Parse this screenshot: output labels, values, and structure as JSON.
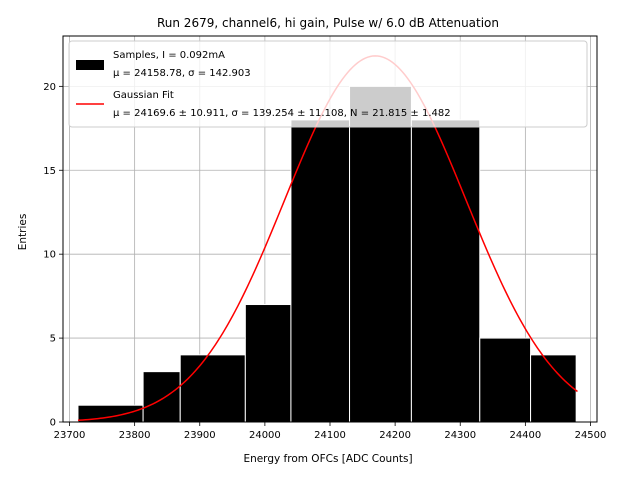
{
  "chart_data": {
    "type": "histogram",
    "title": "Run 2679, channel6, hi gain, Pulse w/ 6.0 dB Attenuation",
    "xlabel": "Energy from OFCs [ADC Counts]",
    "ylabel": "Entries",
    "xlim": [
      23690,
      24510
    ],
    "ylim": [
      0,
      23
    ],
    "xticks": [
      23700,
      23800,
      23900,
      24000,
      24100,
      24200,
      24300,
      24400,
      24500
    ],
    "yticks": [
      0,
      5,
      10,
      15,
      20
    ],
    "grid": true,
    "legend_position": "upper-left",
    "bins": [
      {
        "x0": 23713,
        "x1": 23813,
        "count": 1
      },
      {
        "x0": 23813,
        "x1": 23870,
        "count": 3
      },
      {
        "x0": 23870,
        "x1": 23970,
        "count": 4
      },
      {
        "x0": 23970,
        "x1": 24040,
        "count": 7
      },
      {
        "x0": 24040,
        "x1": 24130,
        "count": 18
      },
      {
        "x0": 24130,
        "x1": 24225,
        "count": 20
      },
      {
        "x0": 24225,
        "x1": 24330,
        "count": 18
      },
      {
        "x0": 24330,
        "x1": 24408,
        "count": 5
      },
      {
        "x0": 24408,
        "x1": 24478,
        "count": 4
      }
    ],
    "fit": {
      "type": "gaussian",
      "mu": 24169.6,
      "sigma": 139.254,
      "N": 21.815,
      "x_range": [
        23713,
        24480
      ],
      "color": "#ff0000"
    },
    "legend": [
      {
        "line1": "Samples, I = 0.092mA",
        "line2": "μ = 24158.78, σ = 142.903",
        "color": "#000000",
        "kind": "patch"
      },
      {
        "line1": "Gaussian Fit",
        "line2": "μ = 24169.6 ± 10.911, σ = 139.254 ± 11.108, N = 21.815 ± 1.482",
        "color": "#ff0000",
        "kind": "line"
      }
    ],
    "bar_color": "#000000",
    "bar_edge_color": "#ffffff"
  }
}
